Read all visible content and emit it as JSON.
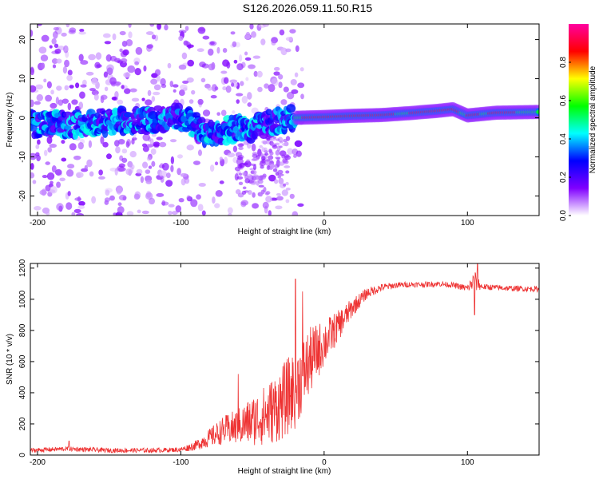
{
  "title": "S126.2026.059.11.50.R15",
  "chart_data": [
    {
      "type": "heatmap",
      "name": "spectrogram",
      "xlabel": "Height of straight line (km)",
      "ylabel": "Frequency (Hz)",
      "xlim": [
        -205,
        150
      ],
      "ylim": [
        -25,
        24
      ],
      "xticks": [
        -200,
        -100,
        0,
        100
      ],
      "yticks": [
        -20,
        -10,
        0,
        10,
        20
      ],
      "colorbar": {
        "label": "Normalized spectral amplitude",
        "range": [
          0.0,
          1.0
        ],
        "ticks": [
          0.0,
          0.2,
          0.4,
          0.6,
          0.8
        ],
        "tick_labels": [
          "0.0",
          "0.2",
          "0.4",
          "0.6",
          "0.8"
        ],
        "colors": [
          "#ffffff",
          "#8000ff",
          "#0000ff",
          "#00ffff",
          "#00ff00",
          "#ffff00",
          "#ff0000",
          "#ff00a0"
        ]
      },
      "ridge": [
        {
          "x": -200,
          "f": -1.5
        },
        {
          "x": -180,
          "f": -1.8
        },
        {
          "x": -160,
          "f": -1.2
        },
        {
          "x": -140,
          "f": -0.8
        },
        {
          "x": -120,
          "f": -0.5
        },
        {
          "x": -100,
          "f": 0.0
        },
        {
          "x": -90,
          "f": -2.0
        },
        {
          "x": -80,
          "f": -4.5
        },
        {
          "x": -70,
          "f": -3.5
        },
        {
          "x": -60,
          "f": -2.5
        },
        {
          "x": -50,
          "f": -3.0
        },
        {
          "x": -40,
          "f": -1.5
        },
        {
          "x": -30,
          "f": -0.5
        },
        {
          "x": -20,
          "f": 0.0
        },
        {
          "x": 0,
          "f": 0.2
        },
        {
          "x": 20,
          "f": 0.5
        },
        {
          "x": 40,
          "f": 0.7
        },
        {
          "x": 60,
          "f": 1.2
        },
        {
          "x": 80,
          "f": 1.8
        },
        {
          "x": 90,
          "f": 2.2
        },
        {
          "x": 100,
          "f": 0.6
        },
        {
          "x": 120,
          "f": 1.3
        },
        {
          "x": 150,
          "f": 1.5
        }
      ]
    },
    {
      "type": "line",
      "name": "snr",
      "xlabel": "Height of straight line (km)",
      "ylabel": "SNR (10 * v/v)",
      "xlim": [
        -205,
        150
      ],
      "ylim": [
        0,
        1230
      ],
      "xticks": [
        -200,
        -100,
        0,
        100
      ],
      "yticks": [
        0,
        200,
        400,
        600,
        800,
        1000,
        1200
      ],
      "color": "#ee3333",
      "series": [
        {
          "name": "SNR",
          "x": [
            -205,
            -180,
            -150,
            -120,
            -100,
            -90,
            -80,
            -70,
            -60,
            -50,
            -40,
            -30,
            -20,
            -10,
            0,
            10,
            20,
            30,
            40,
            50,
            60,
            70,
            80,
            90,
            100,
            105,
            110,
            130,
            150
          ],
          "y": [
            30,
            40,
            30,
            30,
            35,
            60,
            110,
            160,
            180,
            220,
            260,
            330,
            430,
            600,
            720,
            830,
            950,
            1040,
            1075,
            1090,
            1095,
            1095,
            1100,
            1090,
            1070,
            1120,
            1080,
            1070,
            1065
          ],
          "noise": [
            15,
            15,
            15,
            15,
            15,
            30,
            60,
            90,
            120,
            160,
            200,
            240,
            260,
            220,
            150,
            100,
            60,
            35,
            25,
            20,
            18,
            18,
            18,
            18,
            22,
            70,
            20,
            18,
            18
          ],
          "spikes": [
            {
              "x": -178,
              "y": 90
            },
            {
              "x": -60,
              "y": 520
            },
            {
              "x": -20,
              "y": 1130
            },
            {
              "x": -15,
              "y": 1050
            },
            {
              "x": 107,
              "y": 1230
            },
            {
              "x": 105,
              "y": 900
            }
          ]
        }
      ]
    }
  ]
}
